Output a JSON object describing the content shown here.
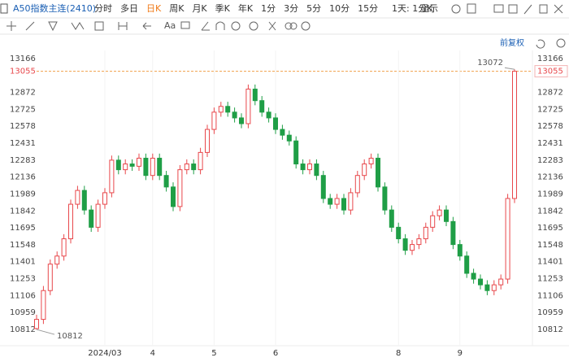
{
  "toolbar": {
    "symbol": "A50指数主连(2410)",
    "periods": [
      "分时",
      "多日",
      "日K",
      "周K",
      "月K",
      "季K",
      "年K",
      "1分",
      "3分",
      "5分",
      "10分",
      "15分"
    ],
    "selected": 2,
    "range": "1天: 1分K",
    "display": "显示",
    "aa": "Aa",
    "adjust": "前复权"
  },
  "chart_data": {
    "type": "candlestick",
    "categories": [
      null,
      null,
      null,
      null,
      null,
      null,
      null,
      null,
      null,
      null,
      "2024/03",
      null,
      null,
      null,
      null,
      null,
      null,
      "4",
      null,
      null,
      null,
      null,
      null,
      null,
      null,
      null,
      "5",
      null,
      null,
      null,
      null,
      null,
      null,
      null,
      null,
      "6",
      null,
      null,
      null,
      null,
      null,
      null,
      null,
      null,
      null,
      null,
      null,
      null,
      null,
      null,
      null,
      null,
      null,
      "8",
      null,
      null,
      null,
      null,
      null,
      null,
      null,
      null,
      "9",
      null,
      null,
      null,
      null,
      null,
      null,
      null,
      null
    ],
    "open": [
      10820,
      10900,
      11150,
      11380,
      11450,
      11600,
      11900,
      12020,
      11850,
      11700,
      11900,
      12000,
      12283,
      12200,
      12250,
      12230,
      12300,
      12150,
      12300,
      12150,
      12050,
      11880,
      12200,
      12250,
      12200,
      12350,
      12550,
      12700,
      12750,
      12700,
      12650,
      12600,
      12900,
      12800,
      12700,
      12650,
      12550,
      12500,
      12450,
      12250,
      12200,
      12250,
      12150,
      11950,
      11900,
      11950,
      11850,
      12000,
      12150,
      12250,
      12300,
      12050,
      11850,
      11700,
      11600,
      11500,
      11550,
      11600,
      11700,
      11800,
      11850,
      11750,
      11550,
      11450,
      11300,
      11250,
      11200,
      11150,
      11200,
      11250,
      11950
    ],
    "high": [
      10940,
      11190,
      11420,
      11490,
      11640,
      11940,
      12060,
      12060,
      11890,
      11940,
      12040,
      12323,
      12323,
      12290,
      12290,
      12340,
      12340,
      12340,
      12340,
      12190,
      12090,
      12240,
      12290,
      12290,
      12390,
      12590,
      12740,
      12790,
      12790,
      12740,
      12690,
      12940,
      12940,
      12840,
      12740,
      12690,
      12590,
      12540,
      12490,
      12290,
      12290,
      12290,
      12190,
      11990,
      11990,
      11990,
      12040,
      12190,
      12290,
      12340,
      12340,
      12090,
      11890,
      11740,
      11640,
      11590,
      11640,
      11740,
      11840,
      11890,
      11890,
      11790,
      11590,
      11490,
      11340,
      11290,
      11240,
      11240,
      11290,
      11990,
      13072
    ],
    "low": [
      10812,
      10860,
      11110,
      11340,
      11410,
      11560,
      11860,
      11810,
      11660,
      11660,
      11860,
      11960,
      12160,
      12160,
      12190,
      12190,
      12110,
      12110,
      12110,
      12010,
      11840,
      11840,
      12160,
      12160,
      12160,
      12310,
      12510,
      12660,
      12660,
      12610,
      12560,
      12560,
      12760,
      12660,
      12610,
      12510,
      12460,
      12410,
      12210,
      12160,
      12160,
      12110,
      11910,
      11860,
      11860,
      11810,
      11810,
      11960,
      12110,
      12210,
      12010,
      11810,
      11660,
      11560,
      11460,
      11460,
      11510,
      11560,
      11660,
      11760,
      11710,
      11510,
      11410,
      11260,
      11210,
      11160,
      11110,
      11110,
      11160,
      11210,
      11910
    ],
    "close": [
      10900,
      11150,
      11380,
      11450,
      11600,
      11900,
      12020,
      11850,
      11700,
      11900,
      12000,
      12283,
      12200,
      12250,
      12230,
      12300,
      12150,
      12300,
      12150,
      12050,
      11880,
      12200,
      12250,
      12200,
      12350,
      12550,
      12700,
      12750,
      12700,
      12650,
      12600,
      12900,
      12800,
      12700,
      12650,
      12550,
      12500,
      12450,
      12250,
      12200,
      12250,
      12150,
      11950,
      11900,
      11950,
      11850,
      12000,
      12150,
      12250,
      12300,
      12050,
      11850,
      11700,
      11600,
      11500,
      11550,
      11600,
      11700,
      11800,
      11850,
      11750,
      11550,
      11450,
      11300,
      11250,
      11200,
      11150,
      11200,
      11250,
      11950,
      13055
    ],
    "up_color": "#e8474b",
    "down_color": "#1f9e46",
    "ylim": [
      10671,
      13236
    ],
    "yticks": [
      13166,
      13055,
      12872,
      12725,
      12578,
      12431,
      12283,
      12136,
      11989,
      11842,
      11695,
      11548,
      11401,
      11253,
      11106,
      10959,
      10812
    ],
    "last_price_tick": 1
  }
}
